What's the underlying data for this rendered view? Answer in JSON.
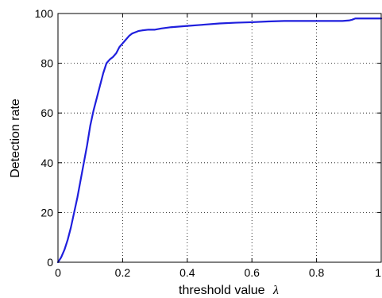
{
  "chart_data": {
    "type": "line",
    "title": "",
    "xlabel": "threshold value",
    "xlabel_symbol": "λ",
    "ylabel": "Detection rate",
    "xlim": [
      0,
      1
    ],
    "ylim": [
      0,
      100
    ],
    "grid": true,
    "legend": "none",
    "x_ticks": [
      "0",
      "0.2",
      "0.4",
      "0.6",
      "0.8",
      "1"
    ],
    "y_ticks": [
      "0",
      "20",
      "40",
      "60",
      "80",
      "100"
    ],
    "x_tick_values": [
      0,
      0.2,
      0.4,
      0.6,
      0.8,
      1
    ],
    "y_tick_values": [
      0,
      20,
      40,
      60,
      80,
      100
    ],
    "series": [
      {
        "color": "#1f1fdd",
        "x": [
          0,
          0.005,
          0.01,
          0.02,
          0.03,
          0.04,
          0.05,
          0.06,
          0.07,
          0.08,
          0.09,
          0.1,
          0.11,
          0.12,
          0.13,
          0.14,
          0.15,
          0.16,
          0.17,
          0.18,
          0.19,
          0.2,
          0.21,
          0.22,
          0.23,
          0.24,
          0.25,
          0.26,
          0.28,
          0.3,
          0.32,
          0.35,
          0.4,
          0.45,
          0.5,
          0.55,
          0.6,
          0.65,
          0.7,
          0.75,
          0.8,
          0.85,
          0.88,
          0.9,
          0.91,
          0.92,
          0.95,
          1.0
        ],
        "y": [
          0,
          1,
          2,
          5,
          9,
          14,
          20,
          26,
          33,
          40,
          47,
          55,
          61,
          66,
          71,
          76,
          80,
          81.5,
          82.5,
          84,
          86.5,
          88,
          89.5,
          91,
          92,
          92.5,
          93,
          93.2,
          93.5,
          93.5,
          94,
          94.5,
          95,
          95.5,
          96,
          96.3,
          96.5,
          96.8,
          97,
          97,
          97,
          97,
          97,
          97.2,
          97.5,
          98,
          98,
          98
        ]
      }
    ]
  }
}
